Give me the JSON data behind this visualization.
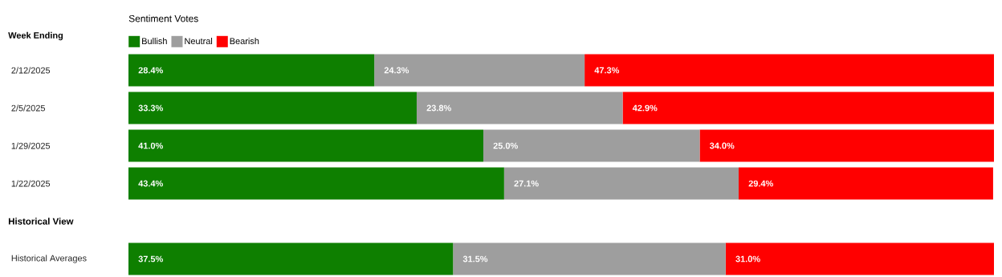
{
  "chart_data": {
    "type": "bar",
    "orientation": "horizontal",
    "stacked": true,
    "ylabel": "Week Ending",
    "legend_title": "Sentiment Votes",
    "legend": "top left",
    "tick_labels": "y",
    "xlim": [
      0,
      100
    ],
    "categories": [
      "2/12/2025",
      "2/5/2025",
      "1/29/2025",
      "1/22/2025",
      null,
      "Historical Averages"
    ],
    "annotations": [
      "Historical View"
    ],
    "series": [
      {
        "name": "Bullish",
        "color": "#0e7f00",
        "values": [
          28.4,
          33.3,
          41.0,
          43.4,
          null,
          37.5
        ],
        "value_labels": [
          "28.4%",
          "33.3%",
          "41.0%",
          "43.4%",
          null,
          "37.5%"
        ]
      },
      {
        "name": "Neutral",
        "color": "#9e9e9e",
        "values": [
          24.3,
          23.8,
          25.0,
          27.1,
          null,
          31.5
        ],
        "value_labels": [
          "24.3%",
          "23.8%",
          "25.0%",
          "27.1%",
          null,
          "31.5%"
        ]
      },
      {
        "name": "Bearish",
        "color": "#ff0000",
        "values": [
          47.3,
          42.9,
          34.0,
          29.4,
          null,
          31.0
        ],
        "value_labels": [
          "47.3%",
          "42.9%",
          "34.0%",
          "29.4%",
          null,
          "31.0%"
        ]
      }
    ]
  }
}
